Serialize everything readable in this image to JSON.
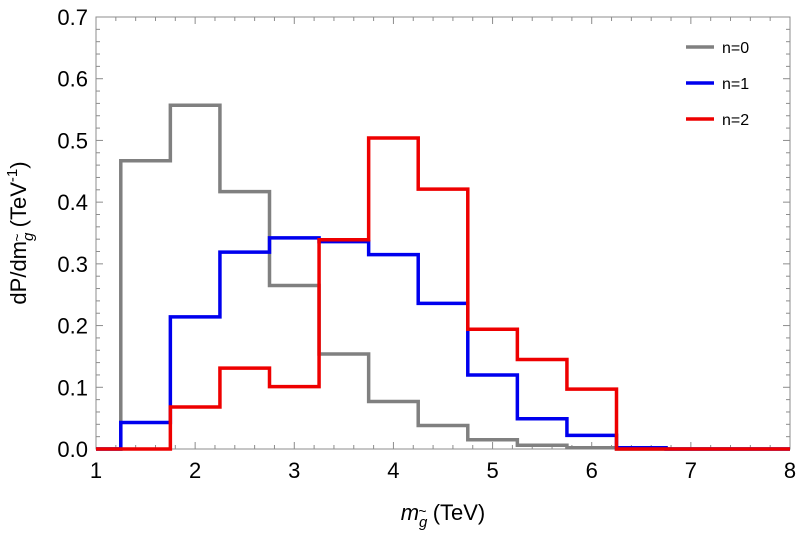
{
  "chart_data": {
    "type": "histogram",
    "title": "",
    "xlabel": {
      "main": "m",
      "subscript": "g",
      "sub_accent": "~",
      "suffix": " (TeV)"
    },
    "ylabel": {
      "prefix": "dP/dm",
      "subscript": "g",
      "sub_accent": "~",
      "suffix": " (TeV",
      "superscript": "-1",
      "close": ")"
    },
    "xlim": [
      1,
      8
    ],
    "ylim": [
      0,
      0.7
    ],
    "xticks": [
      "1",
      "2",
      "3",
      "4",
      "5",
      "6",
      "7",
      "8"
    ],
    "yticks": [
      "0.0",
      "0.1",
      "0.2",
      "0.3",
      "0.4",
      "0.5",
      "0.6",
      "0.7"
    ],
    "bin_edges": [
      1.0,
      1.25,
      1.75,
      2.25,
      2.75,
      3.25,
      3.75,
      4.25,
      4.75,
      5.25,
      5.75,
      6.25,
      6.75,
      8.0
    ],
    "series": [
      {
        "name": "n=0",
        "color": "#808080",
        "values": [
          0.0,
          0.467,
          0.557,
          0.417,
          0.265,
          0.154,
          0.077,
          0.038,
          0.015,
          0.006,
          0.002,
          0.0,
          0.0
        ]
      },
      {
        "name": "n=1",
        "color": "#0000ee",
        "values": [
          0.0,
          0.043,
          0.214,
          0.319,
          0.342,
          0.336,
          0.315,
          0.236,
          0.12,
          0.049,
          0.022,
          0.002,
          0.0
        ]
      },
      {
        "name": "n=2",
        "color": "#ee0000",
        "values": [
          0.0,
          0.0,
          0.068,
          0.131,
          0.101,
          0.339,
          0.504,
          0.421,
          0.194,
          0.145,
          0.097,
          0.0,
          0.0
        ]
      }
    ],
    "legend_position": "top-right",
    "grid": false
  }
}
